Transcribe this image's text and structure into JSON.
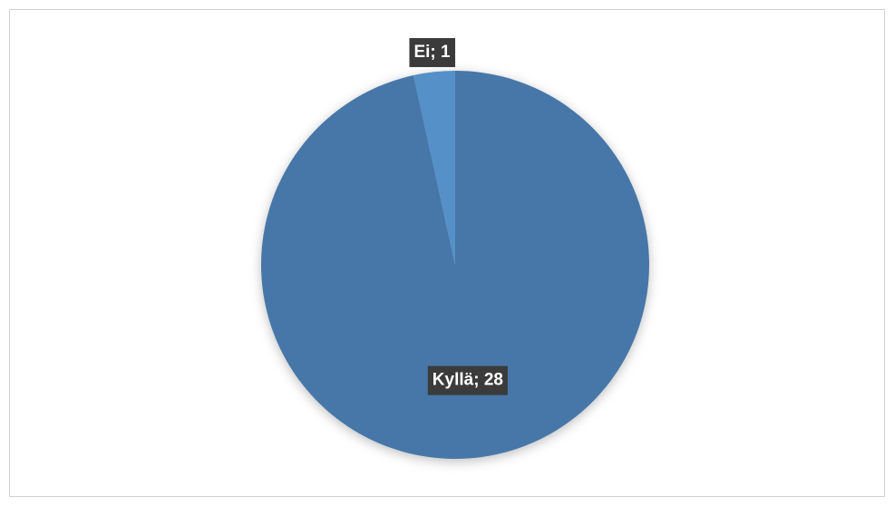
{
  "chart_data": {
    "type": "pie",
    "values": [
      28,
      1
    ],
    "value_labels": [
      "Kyllä; 28",
      "Ei; 1"
    ],
    "colors": [
      "#4677a8",
      "#5590c8"
    ],
    "start_angle": 0,
    "direction": "clockwise"
  }
}
